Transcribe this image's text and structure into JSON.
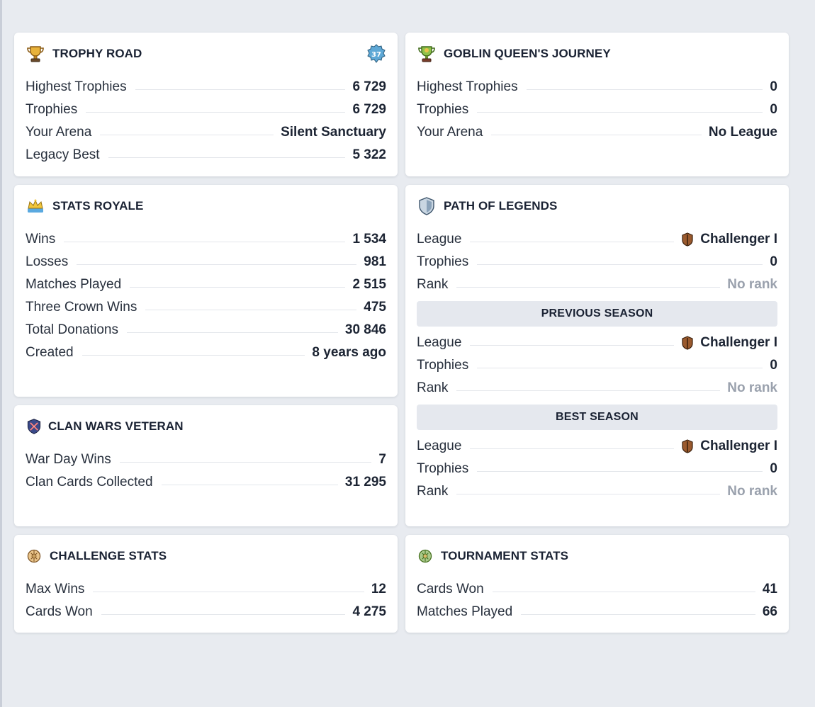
{
  "trophy_road": {
    "title": "TROPHY ROAD",
    "level_badge": "37",
    "icon": "trophy-icon",
    "rows": [
      {
        "label": "Highest Trophies",
        "value": "6 729"
      },
      {
        "label": "Trophies",
        "value": "6 729"
      },
      {
        "label": "Your Arena",
        "value": "Silent Sanctuary"
      },
      {
        "label": "Legacy Best",
        "value": "5 322"
      }
    ]
  },
  "goblin_queen": {
    "title": "GOBLIN QUEEN'S JOURNEY",
    "icon": "goblin-trophy-icon",
    "rows": [
      {
        "label": "Highest Trophies",
        "value": "0"
      },
      {
        "label": "Trophies",
        "value": "0"
      },
      {
        "label": "Your Arena",
        "value": "No League"
      }
    ]
  },
  "stats_royale": {
    "title": "STATS ROYALE",
    "icon": "crown-icon",
    "rows": [
      {
        "label": "Wins",
        "value": "1 534"
      },
      {
        "label": "Losses",
        "value": "981"
      },
      {
        "label": "Matches Played",
        "value": "2 515"
      },
      {
        "label": "Three Crown Wins",
        "value": "475"
      },
      {
        "label": "Total Donations",
        "value": "30 846"
      },
      {
        "label": "Created",
        "value": "8 years ago"
      }
    ]
  },
  "path_of_legends": {
    "title": "PATH OF LEGENDS",
    "icon": "shield-icon",
    "current": [
      {
        "label": "League",
        "value": "Challenger I"
      },
      {
        "label": "Trophies",
        "value": "0"
      },
      {
        "label": "Rank",
        "value": "No rank"
      }
    ],
    "previous_label": "PREVIOUS SEASON",
    "previous": [
      {
        "label": "League",
        "value": "Challenger I"
      },
      {
        "label": "Trophies",
        "value": "0"
      },
      {
        "label": "Rank",
        "value": "No rank"
      }
    ],
    "best_label": "BEST SEASON",
    "best": [
      {
        "label": "League",
        "value": "Challenger I"
      },
      {
        "label": "Trophies",
        "value": "0"
      },
      {
        "label": "Rank",
        "value": "No rank"
      }
    ]
  },
  "clan_wars": {
    "title": "CLAN WARS VETERAN",
    "icon": "clan-wars-icon",
    "rows": [
      {
        "label": "War Day Wins",
        "value": "7"
      },
      {
        "label": "Clan Cards Collected",
        "value": "31 295"
      }
    ]
  },
  "challenge_stats": {
    "title": "CHALLENGE STATS",
    "icon": "challenge-icon",
    "rows": [
      {
        "label": "Max Wins",
        "value": "12"
      },
      {
        "label": "Cards Won",
        "value": "4 275"
      }
    ]
  },
  "tournament_stats": {
    "title": "TOURNAMENT STATS",
    "icon": "tournament-icon",
    "rows": [
      {
        "label": "Cards Won",
        "value": "41"
      },
      {
        "label": "Matches Played",
        "value": "66"
      }
    ]
  },
  "colors": {
    "background": "#e8ebf0",
    "card": "#ffffff",
    "text": "#1c2433",
    "muted": "#9aa1ad",
    "band": "#e5e8ee"
  }
}
